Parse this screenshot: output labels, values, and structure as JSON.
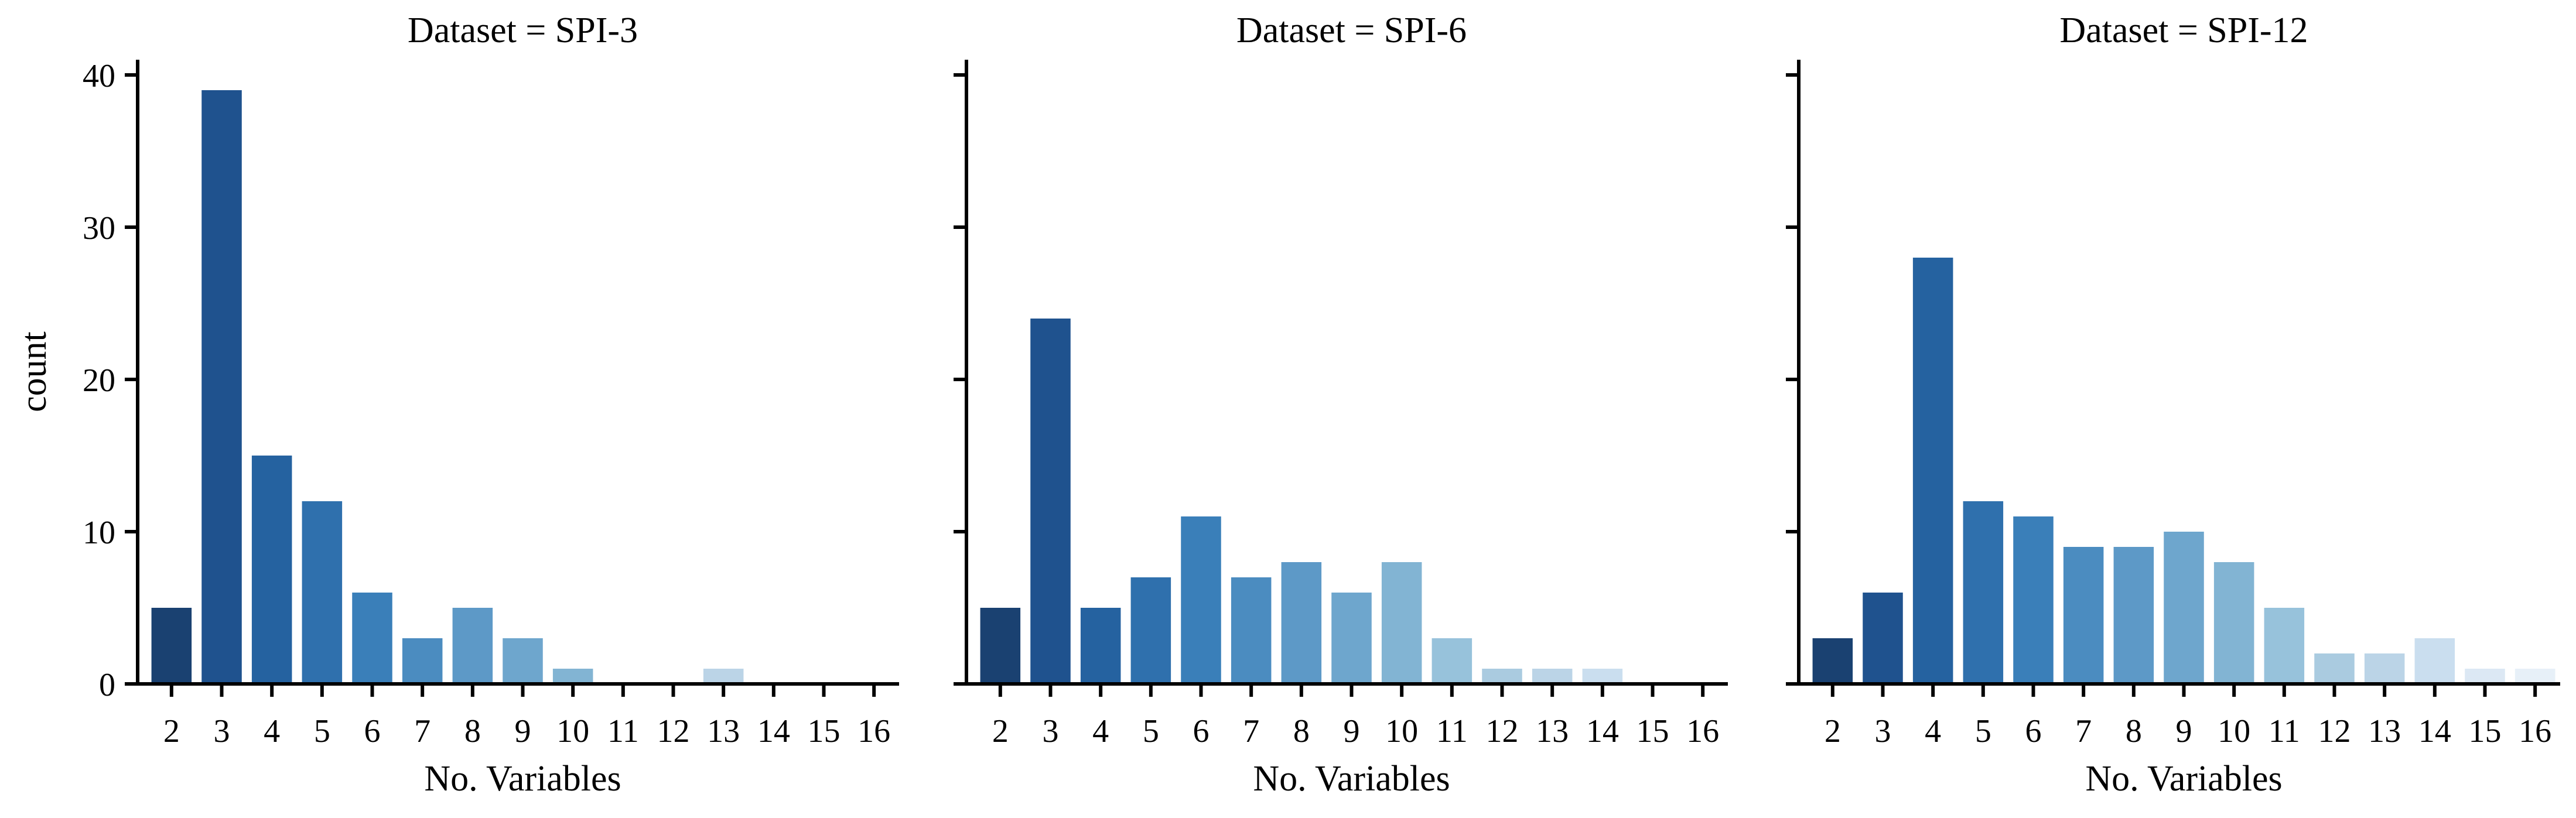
{
  "chart_data": {
    "type": "bar",
    "xlabel": "No. Variables",
    "ylabel": "count",
    "ylim": [
      0,
      41
    ],
    "y_ticks": [
      0,
      10,
      20,
      30,
      40
    ],
    "shared_y": true,
    "categories": [
      "2",
      "3",
      "4",
      "5",
      "6",
      "7",
      "8",
      "9",
      "10",
      "11",
      "12",
      "13",
      "14",
      "15",
      "16"
    ],
    "palette": [
      "#1a4171",
      "#1f528e",
      "#2562a0",
      "#2f70ad",
      "#3a7fb9",
      "#4b8cc0",
      "#5d99c7",
      "#6ea6cd",
      "#82b4d3",
      "#97c2db",
      "#aacbe0",
      "#bbd4e7",
      "#cadeef",
      "#dce8f4",
      "#e7f0f8"
    ],
    "panels": [
      {
        "title": "Dataset = SPI-3",
        "values": [
          5,
          39,
          15,
          12,
          6,
          3,
          5,
          3,
          1,
          0,
          0,
          1,
          0,
          0,
          0
        ],
        "xlabel": "No. Variables",
        "ylabel": "count"
      },
      {
        "title": "Dataset = SPI-6",
        "values": [
          5,
          24,
          5,
          7,
          11,
          7,
          8,
          6,
          8,
          3,
          1,
          1,
          1,
          0,
          0
        ],
        "xlabel": "No. Variables",
        "ylabel": ""
      },
      {
        "title": "Dataset = SPI-12",
        "values": [
          3,
          6,
          28,
          12,
          11,
          9,
          9,
          10,
          8,
          5,
          2,
          2,
          3,
          1,
          1
        ],
        "xlabel": "No. Variables",
        "ylabel": ""
      }
    ]
  }
}
